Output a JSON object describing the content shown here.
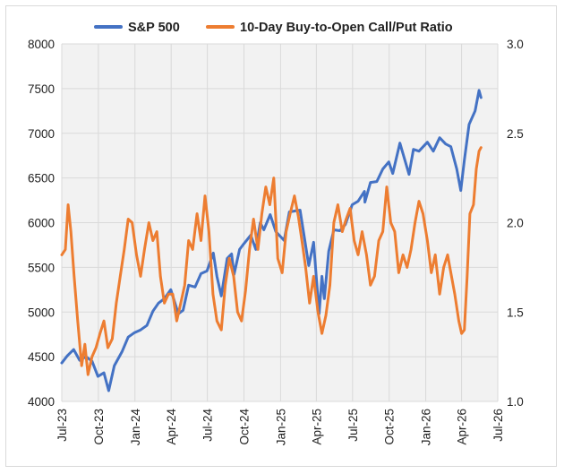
{
  "chart_data": {
    "type": "line",
    "dual_axis": true,
    "x_axis": {
      "type": "date",
      "range": [
        "2023-07-01",
        "2026-07-01"
      ],
      "tick_labels": [
        "Jul-23",
        "Oct-23",
        "Jan-24",
        "Apr-24",
        "Jul-24",
        "Oct-24",
        "Jan-25",
        "Apr-25",
        "Jul-25",
        "Oct-25",
        "Jan-26",
        "Apr-26",
        "Jul-26"
      ],
      "tick_dates": [
        "2023-07-01",
        "2023-10-01",
        "2024-01-01",
        "2024-04-01",
        "2024-07-01",
        "2024-10-01",
        "2025-01-01",
        "2025-04-01",
        "2025-07-01",
        "2025-10-01",
        "2026-01-01",
        "2026-04-01",
        "2026-07-01"
      ],
      "label_rotation": "vertical"
    },
    "y_left": {
      "range": [
        4000,
        8000
      ],
      "tick_labels": [
        "4000",
        "4500",
        "5000",
        "5500",
        "6000",
        "6500",
        "7000",
        "7500",
        "8000"
      ]
    },
    "y_right": {
      "range": [
        1.0,
        3.0
      ],
      "tick_labels": [
        "1.0",
        "1.5",
        "2.0",
        "2.5",
        "3.0"
      ]
    },
    "gridlines": true,
    "plot_background": "#f2f2f2",
    "legend_position": "top",
    "series": [
      {
        "name": "S&P 500",
        "axis": "left",
        "color": "#4472c4",
        "points": [
          [
            "2023-07-01",
            4430
          ],
          [
            "2023-07-15",
            4510
          ],
          [
            "2023-07-31",
            4580
          ],
          [
            "2023-08-15",
            4460
          ],
          [
            "2023-08-31",
            4500
          ],
          [
            "2023-09-15",
            4450
          ],
          [
            "2023-09-30",
            4280
          ],
          [
            "2023-10-15",
            4320
          ],
          [
            "2023-10-27",
            4120
          ],
          [
            "2023-11-10",
            4400
          ],
          [
            "2023-11-30",
            4560
          ],
          [
            "2023-12-15",
            4720
          ],
          [
            "2023-12-31",
            4770
          ],
          [
            "2024-01-15",
            4800
          ],
          [
            "2024-01-31",
            4850
          ],
          [
            "2024-02-15",
            5010
          ],
          [
            "2024-02-29",
            5100
          ],
          [
            "2024-03-15",
            5150
          ],
          [
            "2024-03-31",
            5250
          ],
          [
            "2024-04-19",
            4980
          ],
          [
            "2024-05-01",
            5020
          ],
          [
            "2024-05-15",
            5300
          ],
          [
            "2024-05-31",
            5280
          ],
          [
            "2024-06-15",
            5430
          ],
          [
            "2024-06-30",
            5460
          ],
          [
            "2024-07-16",
            5660
          ],
          [
            "2024-07-25",
            5400
          ],
          [
            "2024-08-05",
            5180
          ],
          [
            "2024-08-20",
            5600
          ],
          [
            "2024-08-31",
            5650
          ],
          [
            "2024-09-06",
            5420
          ],
          [
            "2024-09-20",
            5700
          ],
          [
            "2024-09-30",
            5760
          ],
          [
            "2024-10-18",
            5860
          ],
          [
            "2024-10-31",
            5700
          ],
          [
            "2024-11-11",
            6000
          ],
          [
            "2024-11-20",
            5920
          ],
          [
            "2024-12-06",
            6090
          ],
          [
            "2024-12-20",
            5900
          ],
          [
            "2025-01-10",
            5800
          ],
          [
            "2025-01-23",
            6120
          ],
          [
            "2025-02-19",
            6140
          ],
          [
            "2025-03-13",
            5520
          ],
          [
            "2025-03-25",
            5780
          ],
          [
            "2025-04-08",
            4980
          ],
          [
            "2025-04-15",
            5400
          ],
          [
            "2025-04-21",
            5150
          ],
          [
            "2025-05-02",
            5680
          ],
          [
            "2025-05-15",
            5920
          ],
          [
            "2025-05-30",
            5910
          ],
          [
            "2025-06-13",
            5980
          ],
          [
            "2025-06-30",
            6200
          ],
          [
            "2025-07-15",
            6240
          ],
          [
            "2025-07-31",
            6350
          ],
          [
            "2025-08-01",
            6230
          ],
          [
            "2025-08-15",
            6450
          ],
          [
            "2025-08-31",
            6460
          ],
          [
            "2025-09-15",
            6600
          ],
          [
            "2025-09-30",
            6680
          ],
          [
            "2025-10-10",
            6550
          ],
          [
            "2025-10-28",
            6890
          ],
          [
            "2025-11-20",
            6540
          ],
          [
            "2025-12-01",
            6820
          ],
          [
            "2025-12-15",
            6800
          ],
          [
            "2026-01-05",
            6900
          ],
          [
            "2026-01-20",
            6800
          ],
          [
            "2026-02-05",
            6950
          ],
          [
            "2026-02-20",
            6880
          ],
          [
            "2026-03-05",
            6850
          ],
          [
            "2026-03-20",
            6600
          ],
          [
            "2026-03-30",
            6360
          ],
          [
            "2026-04-08",
            6700
          ],
          [
            "2026-04-20",
            7100
          ],
          [
            "2026-05-05",
            7250
          ],
          [
            "2026-05-15",
            7480
          ],
          [
            "2026-05-20",
            7400
          ]
        ]
      },
      {
        "name": "10-Day Buy-to-Open Call/Put Ratio",
        "axis": "right",
        "color": "#ed7d31",
        "points": [
          [
            "2023-07-01",
            1.82
          ],
          [
            "2023-07-10",
            1.85
          ],
          [
            "2023-07-17",
            2.1
          ],
          [
            "2023-07-24",
            1.95
          ],
          [
            "2023-08-01",
            1.7
          ],
          [
            "2023-08-10",
            1.45
          ],
          [
            "2023-08-20",
            1.2
          ],
          [
            "2023-08-28",
            1.32
          ],
          [
            "2023-09-05",
            1.15
          ],
          [
            "2023-09-15",
            1.25
          ],
          [
            "2023-09-25",
            1.3
          ],
          [
            "2023-10-05",
            1.38
          ],
          [
            "2023-10-15",
            1.45
          ],
          [
            "2023-10-25",
            1.3
          ],
          [
            "2023-11-05",
            1.35
          ],
          [
            "2023-11-15",
            1.55
          ],
          [
            "2023-11-25",
            1.7
          ],
          [
            "2023-12-05",
            1.85
          ],
          [
            "2023-12-15",
            2.02
          ],
          [
            "2023-12-25",
            2.0
          ],
          [
            "2024-01-05",
            1.82
          ],
          [
            "2024-01-15",
            1.7
          ],
          [
            "2024-01-25",
            1.85
          ],
          [
            "2024-02-05",
            2.0
          ],
          [
            "2024-02-15",
            1.9
          ],
          [
            "2024-02-25",
            1.95
          ],
          [
            "2024-03-05",
            1.7
          ],
          [
            "2024-03-15",
            1.55
          ],
          [
            "2024-03-25",
            1.6
          ],
          [
            "2024-04-05",
            1.6
          ],
          [
            "2024-04-15",
            1.45
          ],
          [
            "2024-04-25",
            1.55
          ],
          [
            "2024-05-05",
            1.65
          ],
          [
            "2024-05-15",
            1.9
          ],
          [
            "2024-05-25",
            1.85
          ],
          [
            "2024-06-05",
            2.05
          ],
          [
            "2024-06-15",
            1.9
          ],
          [
            "2024-06-25",
            2.15
          ],
          [
            "2024-07-05",
            1.95
          ],
          [
            "2024-07-15",
            1.6
          ],
          [
            "2024-07-25",
            1.45
          ],
          [
            "2024-08-05",
            1.4
          ],
          [
            "2024-08-15",
            1.65
          ],
          [
            "2024-08-25",
            1.8
          ],
          [
            "2024-09-05",
            1.7
          ],
          [
            "2024-09-15",
            1.5
          ],
          [
            "2024-09-25",
            1.45
          ],
          [
            "2024-10-05",
            1.62
          ],
          [
            "2024-10-15",
            1.85
          ],
          [
            "2024-10-25",
            2.02
          ],
          [
            "2024-11-05",
            1.85
          ],
          [
            "2024-11-15",
            2.05
          ],
          [
            "2024-11-25",
            2.2
          ],
          [
            "2024-12-05",
            2.1
          ],
          [
            "2024-12-15",
            2.25
          ],
          [
            "2024-12-25",
            1.8
          ],
          [
            "2025-01-05",
            1.72
          ],
          [
            "2025-01-15",
            1.95
          ],
          [
            "2025-01-25",
            2.05
          ],
          [
            "2025-02-05",
            2.15
          ],
          [
            "2025-02-15",
            2.03
          ],
          [
            "2025-02-25",
            1.88
          ],
          [
            "2025-03-05",
            1.75
          ],
          [
            "2025-03-15",
            1.55
          ],
          [
            "2025-03-25",
            1.7
          ],
          [
            "2025-04-05",
            1.5
          ],
          [
            "2025-04-15",
            1.38
          ],
          [
            "2025-04-25",
            1.48
          ],
          [
            "2025-05-05",
            1.65
          ],
          [
            "2025-05-15",
            2.0
          ],
          [
            "2025-05-25",
            2.1
          ],
          [
            "2025-06-05",
            1.95
          ],
          [
            "2025-06-15",
            2.02
          ],
          [
            "2025-06-25",
            2.08
          ],
          [
            "2025-07-05",
            1.9
          ],
          [
            "2025-07-15",
            1.82
          ],
          [
            "2025-07-25",
            1.95
          ],
          [
            "2025-08-05",
            1.82
          ],
          [
            "2025-08-15",
            1.65
          ],
          [
            "2025-08-25",
            1.7
          ],
          [
            "2025-09-05",
            1.9
          ],
          [
            "2025-09-15",
            1.95
          ],
          [
            "2025-09-25",
            2.2
          ],
          [
            "2025-10-05",
            2.0
          ],
          [
            "2025-10-15",
            1.95
          ],
          [
            "2025-10-25",
            1.72
          ],
          [
            "2025-11-05",
            1.82
          ],
          [
            "2025-11-15",
            1.75
          ],
          [
            "2025-11-25",
            1.85
          ],
          [
            "2025-12-05",
            2.0
          ],
          [
            "2025-12-15",
            2.12
          ],
          [
            "2025-12-25",
            2.05
          ],
          [
            "2026-01-05",
            1.9
          ],
          [
            "2026-01-15",
            1.72
          ],
          [
            "2026-01-25",
            1.82
          ],
          [
            "2026-02-05",
            1.6
          ],
          [
            "2026-02-15",
            1.75
          ],
          [
            "2026-02-25",
            1.82
          ],
          [
            "2026-03-05",
            1.72
          ],
          [
            "2026-03-15",
            1.6
          ],
          [
            "2026-03-25",
            1.45
          ],
          [
            "2026-04-01",
            1.38
          ],
          [
            "2026-04-08",
            1.4
          ],
          [
            "2026-04-15",
            1.7
          ],
          [
            "2026-04-22",
            2.05
          ],
          [
            "2026-05-01",
            2.1
          ],
          [
            "2026-05-08",
            2.3
          ],
          [
            "2026-05-15",
            2.4
          ],
          [
            "2026-05-20",
            2.42
          ]
        ]
      }
    ]
  }
}
